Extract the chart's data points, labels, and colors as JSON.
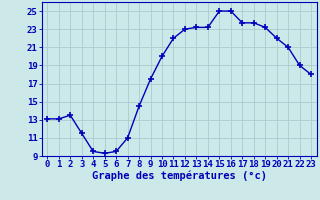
{
  "x": [
    0,
    1,
    2,
    3,
    4,
    5,
    6,
    7,
    8,
    9,
    10,
    11,
    12,
    13,
    14,
    15,
    16,
    17,
    18,
    19,
    20,
    21,
    22,
    23
  ],
  "y": [
    13.1,
    13.1,
    13.5,
    11.5,
    9.5,
    9.3,
    9.5,
    11.0,
    14.5,
    17.5,
    20.0,
    22.0,
    23.0,
    23.2,
    23.2,
    25.0,
    25.0,
    23.7,
    23.7,
    23.2,
    22.0,
    21.0,
    19.0,
    18.0
  ],
  "xlabel": "Graphe des températures (°c)",
  "ylim": [
    9,
    26
  ],
  "yticks": [
    9,
    11,
    13,
    15,
    17,
    19,
    21,
    23,
    25
  ],
  "xticks": [
    0,
    1,
    2,
    3,
    4,
    5,
    6,
    7,
    8,
    9,
    10,
    11,
    12,
    13,
    14,
    15,
    16,
    17,
    18,
    19,
    20,
    21,
    22,
    23
  ],
  "xtick_labels": [
    "0",
    "1",
    "2",
    "3",
    "4",
    "5",
    "6",
    "7",
    "8",
    "9",
    "10",
    "11",
    "12",
    "13",
    "14",
    "15",
    "16",
    "17",
    "18",
    "19",
    "20",
    "21",
    "22",
    "23"
  ],
  "line_color": "#0000bb",
  "marker": "+",
  "marker_size": 4,
  "background_color": "#cce8e8",
  "grid_color": "#aacccc",
  "xlabel_color": "#0000bb",
  "tick_color": "#0000bb",
  "xlabel_fontsize": 7.5,
  "tick_fontsize": 6.5,
  "linewidth": 1.0
}
